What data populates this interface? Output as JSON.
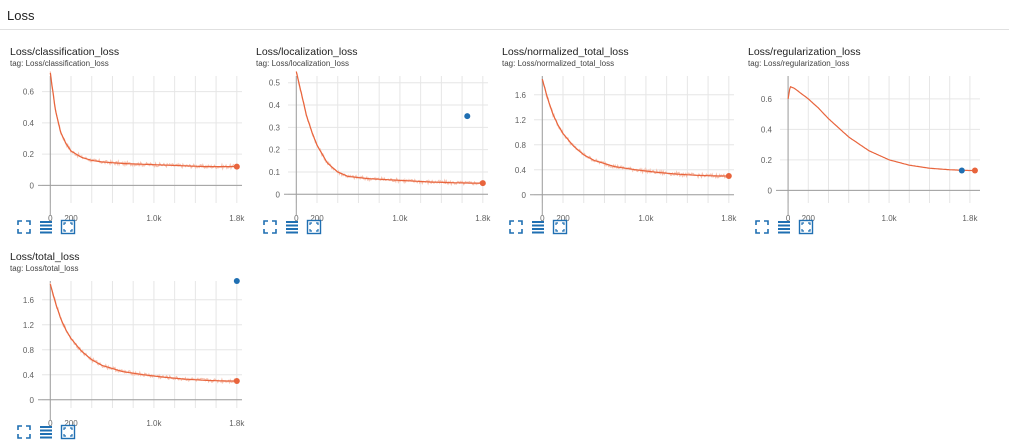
{
  "section": {
    "title": "Loss"
  },
  "colors": {
    "line": "#e8643c",
    "line_faint": "#f6c2b0",
    "accent": "#1f6fb2",
    "grid": "#e6e6e6",
    "axis": "#9e9e9e",
    "text": "#616161"
  },
  "toolbar_icons": [
    "fullscreen-icon",
    "toggle-log-scale-icon",
    "fit-domain-icon"
  ],
  "cards": [
    {
      "title": "Loss/classification_loss",
      "tag": "tag: Loss/classification_loss",
      "chart_data": {
        "type": "line",
        "x_ticks": [
          "0",
          "200",
          "1.0k",
          "1.8k"
        ],
        "y_ticks": [
          "0",
          "0.2",
          "0.4",
          "0.6"
        ],
        "xlim": [
          -80,
          1850
        ],
        "ylim": [
          -0.1,
          0.7
        ],
        "series": [
          {
            "x": [
              0,
              50,
              100,
              150,
              200,
              300,
              400,
              500,
              700,
              900,
              1100,
              1300,
              1500,
              1700,
              1800
            ],
            "y": [
              0.72,
              0.48,
              0.34,
              0.27,
              0.22,
              0.18,
              0.16,
              0.15,
              0.14,
              0.135,
              0.13,
              0.125,
              0.12,
              0.12,
              0.12
            ]
          }
        ],
        "end_marker": "orange-dot"
      }
    },
    {
      "title": "Loss/localization_loss",
      "tag": "tag: Loss/localization_loss",
      "chart_data": {
        "type": "line",
        "x_ticks": [
          "0",
          "200",
          "1.0k",
          "1.8k"
        ],
        "y_ticks": [
          "0",
          "0.1",
          "0.2",
          "0.3",
          "0.4",
          "0.5"
        ],
        "xlim": [
          -80,
          1850
        ],
        "ylim": [
          -0.03,
          0.53
        ],
        "series": [
          {
            "x": [
              0,
              50,
              100,
              150,
              200,
              300,
              400,
              500,
              700,
              900,
              1100,
              1300,
              1500,
              1700,
              1800
            ],
            "y": [
              0.55,
              0.45,
              0.35,
              0.28,
              0.22,
              0.14,
              0.1,
              0.08,
              0.07,
              0.065,
              0.06,
              0.055,
              0.052,
              0.05,
              0.05
            ]
          }
        ],
        "highlight_point": {
          "x": 1650,
          "y": 0.35
        },
        "end_marker": "orange-dot"
      }
    },
    {
      "title": "Loss/normalized_total_loss",
      "tag": "tag: Loss/normalized_total_loss",
      "chart_data": {
        "type": "line",
        "x_ticks": [
          "0",
          "200",
          "1.0k",
          "1.8k"
        ],
        "y_ticks": [
          "0",
          "0.4",
          "0.8",
          "1.2",
          "1.6"
        ],
        "xlim": [
          -80,
          1850
        ],
        "ylim": [
          -0.1,
          1.9
        ],
        "series": [
          {
            "x": [
              0,
              50,
              100,
              150,
              200,
              300,
              400,
              500,
              700,
              900,
              1100,
              1300,
              1500,
              1700,
              1800
            ],
            "y": [
              1.85,
              1.55,
              1.3,
              1.12,
              0.98,
              0.78,
              0.64,
              0.55,
              0.45,
              0.4,
              0.36,
              0.33,
              0.31,
              0.3,
              0.3
            ]
          }
        ],
        "end_marker": "orange-dot"
      }
    },
    {
      "title": "Loss/regularization_loss",
      "tag": "tag: Loss/regularization_loss",
      "chart_data": {
        "type": "line",
        "x_ticks": [
          "0",
          "200",
          "1.0k",
          "1.8k"
        ],
        "y_ticks": [
          "0",
          "0.2",
          "0.4",
          "0.6"
        ],
        "xlim": [
          -80,
          1900
        ],
        "ylim": [
          -0.07,
          0.75
        ],
        "series": [
          {
            "x": [
              0,
              20,
              60,
              100,
              200,
              300,
              400,
              500,
              600,
              800,
              1000,
              1200,
              1400,
              1600,
              1800,
              1850
            ],
            "y": [
              0.6,
              0.68,
              0.67,
              0.65,
              0.6,
              0.54,
              0.47,
              0.41,
              0.35,
              0.26,
              0.2,
              0.165,
              0.145,
              0.135,
              0.13,
              0.13
            ]
          }
        ],
        "highlight_point": {
          "x": 1720,
          "y": 0.13
        },
        "end_marker": "orange-dot"
      }
    },
    {
      "title": "Loss/total_loss",
      "tag": "tag: Loss/total_loss",
      "chart_data": {
        "type": "line",
        "x_ticks": [
          "0",
          "200",
          "1.0k",
          "1.8k"
        ],
        "y_ticks": [
          "0",
          "0.4",
          "0.8",
          "1.2",
          "1.6"
        ],
        "xlim": [
          -80,
          1850
        ],
        "ylim": [
          -0.1,
          1.9
        ],
        "series": [
          {
            "x": [
              0,
              50,
              100,
              150,
              200,
              300,
              400,
              500,
              700,
              900,
              1100,
              1300,
              1500,
              1700,
              1800
            ],
            "y": [
              1.85,
              1.55,
              1.3,
              1.12,
              0.98,
              0.78,
              0.64,
              0.55,
              0.45,
              0.4,
              0.36,
              0.33,
              0.31,
              0.3,
              0.3
            ]
          }
        ],
        "highlight_point": {
          "x": 1800,
          "y": 1.9
        },
        "end_marker": "orange-dot"
      }
    }
  ]
}
